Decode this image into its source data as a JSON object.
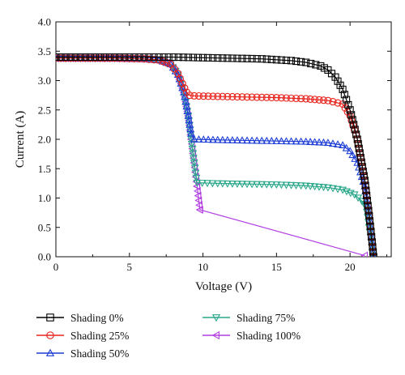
{
  "chart_data": {
    "type": "line",
    "xlabel": "Voltage (V)",
    "ylabel": "Current (A)",
    "xlim": [
      0,
      22.8
    ],
    "ylim": [
      0,
      4.0
    ],
    "x_ticks": [
      0,
      5,
      10,
      15,
      20
    ],
    "x_tick_labels": [
      "0",
      "5",
      "10",
      "15",
      "20"
    ],
    "y_ticks": [
      0.0,
      0.5,
      1.0,
      1.5,
      2.0,
      2.5,
      3.0,
      3.5,
      4.0
    ],
    "y_tick_labels": [
      "0.0",
      "0.5",
      "1.0",
      "1.5",
      "2.0",
      "2.5",
      "3.0",
      "3.5",
      "4.0"
    ],
    "grid": false,
    "legend_position": "bottom",
    "series": [
      {
        "name": "Shading 0%",
        "color": "#000000",
        "marker": "square",
        "x": [
          0,
          2,
          4,
          6,
          8,
          10,
          12,
          14,
          16,
          17,
          18,
          18.5,
          19,
          19.5,
          20,
          20.5,
          21,
          21.3,
          21.5,
          21.6
        ],
        "y": [
          3.4,
          3.4,
          3.4,
          3.4,
          3.4,
          3.39,
          3.38,
          3.37,
          3.34,
          3.31,
          3.25,
          3.18,
          3.06,
          2.85,
          2.5,
          2.0,
          1.3,
          0.7,
          0.25,
          0.0
        ]
      },
      {
        "name": "Shading 25%",
        "color": "#e8231c",
        "marker": "circle",
        "x": [
          0,
          2,
          4,
          6,
          7,
          7.8,
          8.3,
          8.6,
          8.9,
          9.1,
          9.4,
          11,
          13,
          15,
          17,
          18.5,
          19.5,
          20,
          20.5,
          21,
          21.3,
          21.5,
          21.6
        ],
        "y": [
          3.38,
          3.38,
          3.38,
          3.37,
          3.35,
          3.28,
          3.12,
          2.95,
          2.8,
          2.75,
          2.74,
          2.73,
          2.72,
          2.71,
          2.69,
          2.66,
          2.6,
          2.4,
          2.0,
          1.3,
          0.7,
          0.25,
          0.0
        ]
      },
      {
        "name": "Shading 50%",
        "color": "#1f3fd6",
        "marker": "triangle-up",
        "x": [
          0,
          2,
          4,
          6,
          7,
          7.8,
          8.3,
          8.7,
          9.0,
          9.2,
          9.4,
          11,
          13,
          15,
          17,
          18.5,
          19.5,
          20,
          20.5,
          21,
          21.3,
          21.5,
          21.6
        ],
        "y": [
          3.38,
          3.38,
          3.38,
          3.37,
          3.35,
          3.28,
          3.1,
          2.8,
          2.4,
          2.1,
          2.0,
          1.99,
          1.98,
          1.97,
          1.96,
          1.94,
          1.9,
          1.8,
          1.6,
          1.2,
          0.7,
          0.25,
          0.0
        ]
      },
      {
        "name": "Shading 75%",
        "color": "#2aa78a",
        "marker": "triangle-down",
        "x": [
          0,
          2,
          4,
          6,
          7,
          7.8,
          8.3,
          8.7,
          9.0,
          9.2,
          9.4,
          9.6,
          11,
          13,
          15,
          17,
          18.5,
          19.5,
          20.3,
          20.8,
          21.1,
          21.3,
          21.6
        ],
        "y": [
          3.38,
          3.38,
          3.38,
          3.37,
          3.35,
          3.28,
          3.1,
          2.8,
          2.4,
          2.0,
          1.6,
          1.26,
          1.25,
          1.24,
          1.23,
          1.21,
          1.18,
          1.14,
          1.06,
          0.95,
          0.85,
          0.5,
          0.0
        ]
      },
      {
        "name": "Shading 100%",
        "color": "#b13fe0",
        "marker": "triangle-left",
        "x": [
          0,
          2,
          4,
          6,
          7,
          7.8,
          8.3,
          8.7,
          9.0,
          9.2,
          9.4,
          9.6,
          9.8,
          21.0
        ],
        "y": [
          3.38,
          3.38,
          3.38,
          3.37,
          3.35,
          3.28,
          3.1,
          2.8,
          2.4,
          2.0,
          1.6,
          1.2,
          0.8,
          0.02
        ]
      }
    ]
  }
}
